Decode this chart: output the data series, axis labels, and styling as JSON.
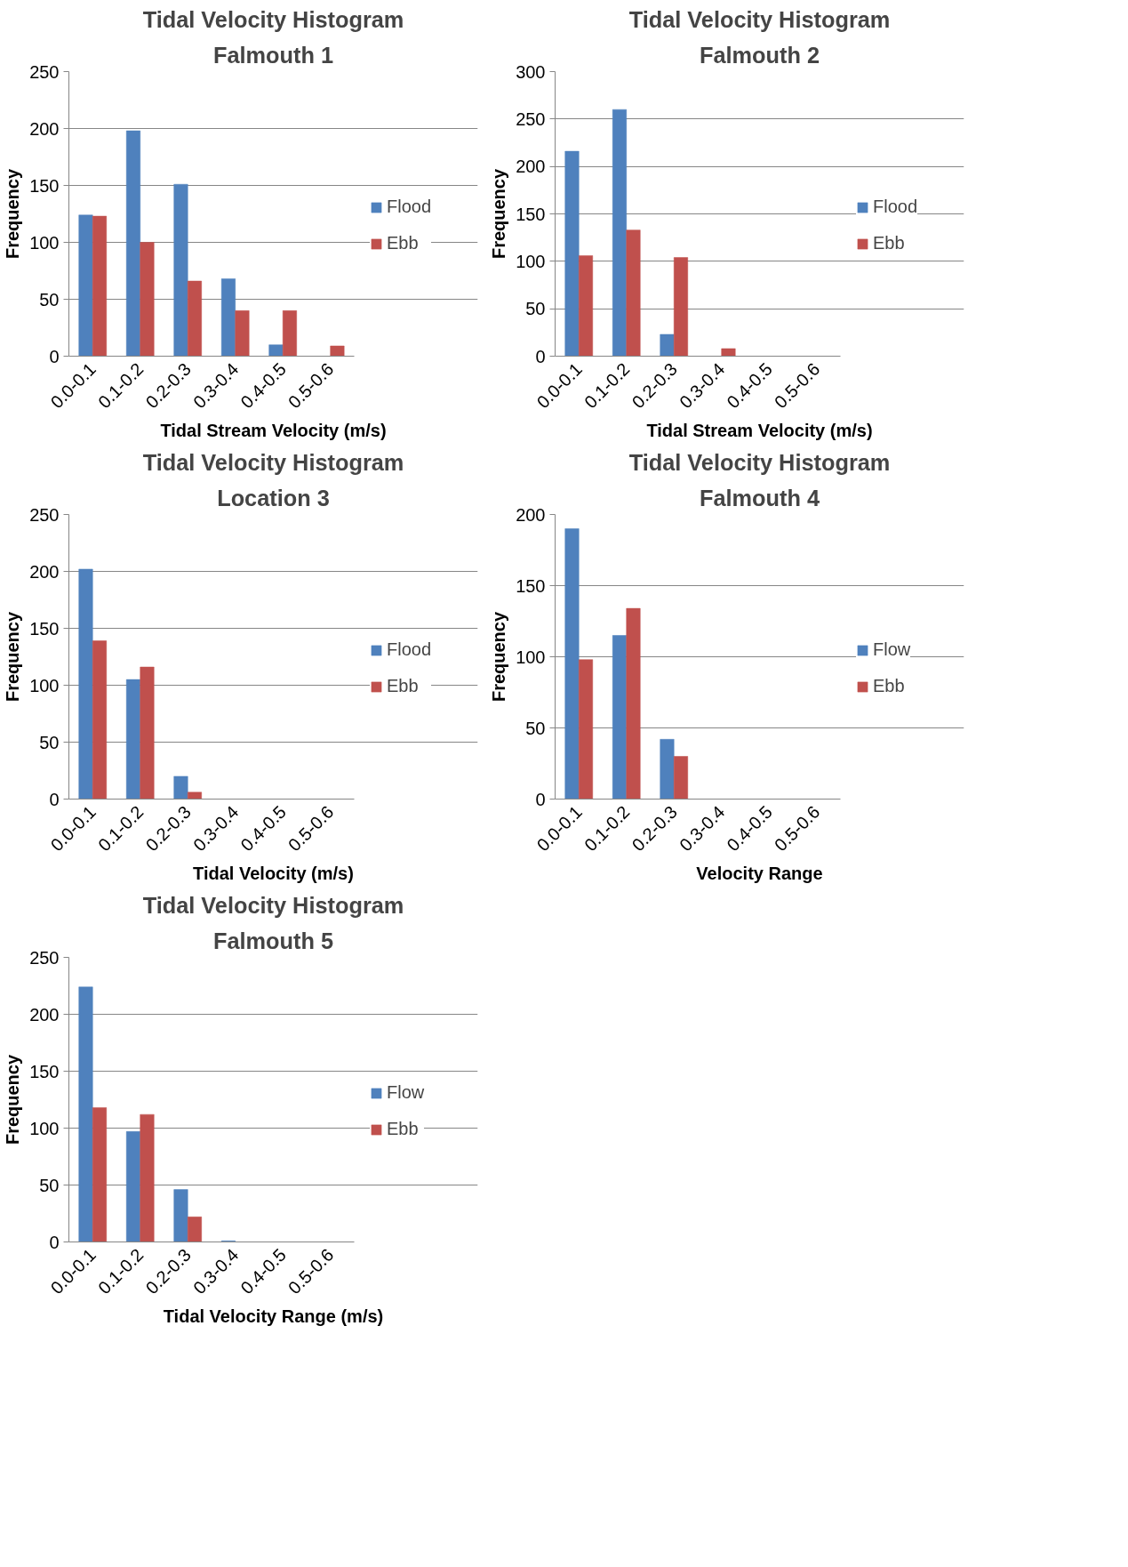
{
  "chart_data": [
    {
      "type": "bar",
      "title": "Tidal Velocity Histogram",
      "subtitle": "Falmouth 1",
      "xlabel": "Tidal Stream Velocity (m/s)",
      "ylabel": "Frequency",
      "categories": [
        "0.0-0.1",
        "0.1-0.2",
        "0.2-0.3",
        "0.3-0.4",
        "0.4-0.5",
        "0.5-0.6"
      ],
      "ylim": [
        0,
        250
      ],
      "yticks": [
        0,
        50,
        100,
        150,
        200,
        250
      ],
      "grid": "y",
      "legend": "right",
      "series": [
        {
          "name": "Flood",
          "color": "#4f81bd",
          "values": [
            124,
            198,
            151,
            68,
            10,
            0
          ]
        },
        {
          "name": "Ebb",
          "color": "#c0504d",
          "values": [
            123,
            100,
            66,
            40,
            40,
            9
          ]
        }
      ]
    },
    {
      "type": "bar",
      "title": "Tidal Velocity Histogram",
      "subtitle": "Falmouth 2",
      "xlabel": "Tidal Stream Velocity (m/s)",
      "ylabel": "Frequency",
      "categories": [
        "0.0-0.1",
        "0.1-0.2",
        "0.2-0.3",
        "0.3-0.4",
        "0.4-0.5",
        "0.5-0.6"
      ],
      "ylim": [
        0,
        300
      ],
      "yticks": [
        0,
        50,
        100,
        150,
        200,
        250,
        300
      ],
      "grid": "y",
      "legend": "right",
      "series": [
        {
          "name": "Flood",
          "color": "#4f81bd",
          "values": [
            216,
            260,
            23,
            0,
            0,
            0
          ]
        },
        {
          "name": "Ebb",
          "color": "#c0504d",
          "values": [
            106,
            133,
            104,
            8,
            0,
            0
          ]
        }
      ]
    },
    {
      "type": "bar",
      "title": "Tidal Velocity Histogram",
      "subtitle": "Location 3",
      "xlabel": "Tidal Velocity (m/s)",
      "ylabel": "Frequency",
      "categories": [
        "0.0-0.1",
        "0.1-0.2",
        "0.2-0.3",
        "0.3-0.4",
        "0.4-0.5",
        "0.5-0.6"
      ],
      "ylim": [
        0,
        250
      ],
      "yticks": [
        0,
        50,
        100,
        150,
        200,
        250
      ],
      "grid": "y",
      "legend": "right",
      "series": [
        {
          "name": "Flood",
          "color": "#4f81bd",
          "values": [
            202,
            105,
            20,
            0,
            0,
            0
          ]
        },
        {
          "name": "Ebb",
          "color": "#c0504d",
          "values": [
            139,
            116,
            6,
            0,
            0,
            0
          ]
        }
      ]
    },
    {
      "type": "bar",
      "title": "Tidal Velocity Histogram",
      "subtitle": "Falmouth 4",
      "xlabel": "Velocity Range",
      "ylabel": "Frequency",
      "categories": [
        "0.0-0.1",
        "0.1-0.2",
        "0.2-0.3",
        "0.3-0.4",
        "0.4-0.5",
        "0.5-0.6"
      ],
      "ylim": [
        0,
        200
      ],
      "yticks": [
        0,
        50,
        100,
        150,
        200
      ],
      "grid": "y",
      "legend": "right",
      "series": [
        {
          "name": "Flow",
          "color": "#4f81bd",
          "values": [
            190,
            115,
            42,
            0,
            0,
            0
          ]
        },
        {
          "name": "Ebb",
          "color": "#c0504d",
          "values": [
            98,
            134,
            30,
            0,
            0,
            0
          ]
        }
      ]
    },
    {
      "type": "bar",
      "title": "Tidal Velocity Histogram",
      "subtitle": "Falmouth 5",
      "xlabel": "Tidal Velocity Range (m/s)",
      "ylabel": "Frequency",
      "categories": [
        "0.0-0.1",
        "0.1-0.2",
        "0.2-0.3",
        "0.3-0.4",
        "0.4-0.5",
        "0.5-0.6"
      ],
      "ylim": [
        0,
        250
      ],
      "yticks": [
        0,
        50,
        100,
        150,
        200,
        250
      ],
      "grid": "y",
      "legend": "right",
      "series": [
        {
          "name": "Flow",
          "color": "#4f81bd",
          "values": [
            224,
            97,
            46,
            1,
            0,
            0
          ]
        },
        {
          "name": "Ebb",
          "color": "#c0504d",
          "values": [
            118,
            112,
            22,
            0,
            0,
            0
          ]
        }
      ]
    }
  ]
}
